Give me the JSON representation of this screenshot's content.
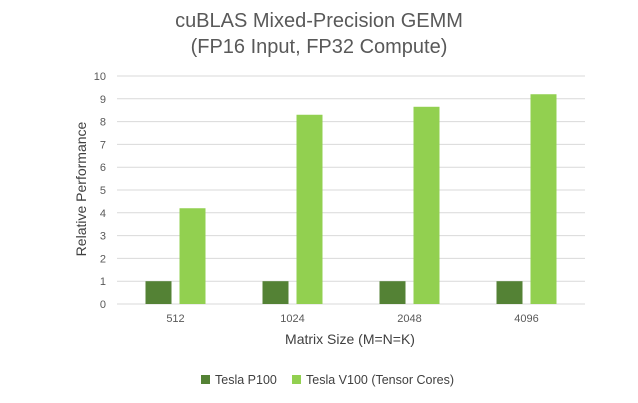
{
  "chart_data": {
    "type": "bar",
    "title": [
      "cuBLAS Mixed-Precision GEMM",
      "(FP16 Input, FP32 Compute)"
    ],
    "xlabel": "Matrix Size (M=N=K)",
    "ylabel": "Relative Performance",
    "categories": [
      "512",
      "1024",
      "2048",
      "4096"
    ],
    "ylim": [
      0,
      10
    ],
    "yticks": [
      0,
      1,
      2,
      3,
      4,
      5,
      6,
      7,
      8,
      9,
      10
    ],
    "grid": true,
    "legend_position": "bottom",
    "series": [
      {
        "name": "Tesla P100",
        "color": "#548235",
        "values": [
          1,
          1,
          1,
          1
        ]
      },
      {
        "name": "Tesla V100 (Tensor Cores)",
        "color": "#92d050",
        "values": [
          4.2,
          8.3,
          8.65,
          9.2
        ]
      }
    ]
  }
}
